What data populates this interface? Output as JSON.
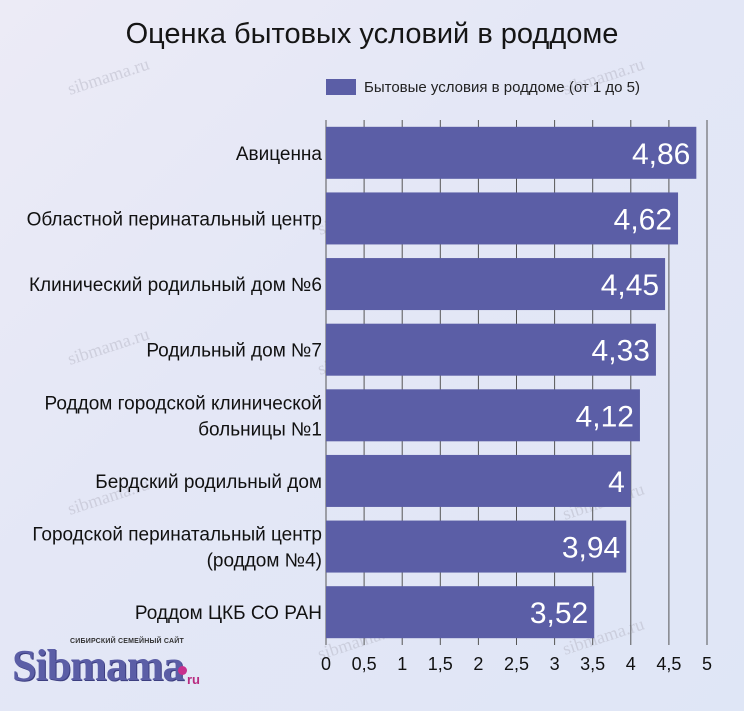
{
  "chart_data": {
    "type": "bar",
    "orientation": "horizontal",
    "title": "Оценка бытовых условий в роддоме",
    "legend": "top",
    "categories": [
      "Авиценна",
      "Областной перинатальный центр",
      "Клинический родильный дом №6",
      "Родильный дом №7",
      "Роддом городской клинической больницы №1",
      "Бердский родильный дом",
      "Городской перинатальный центр (роддом №4)",
      "Роддом ЦКБ СО РАН"
    ],
    "category_lines": [
      [
        "Авиценна"
      ],
      [
        "Областной перинатальный центр"
      ],
      [
        "Клинический родильный дом №6"
      ],
      [
        "Родильный дом №7"
      ],
      [
        "Роддом городской клинической",
        "больницы №1"
      ],
      [
        "Бердский родильный дом"
      ],
      [
        "Городской перинатальный центр",
        "(роддом №4)"
      ],
      [
        "Роддом ЦКБ СО РАН"
      ]
    ],
    "series": [
      {
        "name": "Бытовые условия в роддоме (от 1 до 5)",
        "values": [
          4.86,
          4.62,
          4.45,
          4.33,
          4.12,
          4,
          3.94,
          3.52
        ],
        "labels": [
          "4,86",
          "4,62",
          "4,45",
          "4,33",
          "4,12",
          "4",
          "3,94",
          "3,52"
        ]
      }
    ],
    "xlim": [
      0,
      5
    ],
    "xticks": [
      0,
      0.5,
      1,
      1.5,
      2,
      2.5,
      3,
      3.5,
      4,
      4.5,
      5
    ],
    "xtick_labels": [
      "0",
      "0,5",
      "1",
      "1,5",
      "2",
      "2,5",
      "3",
      "3,5",
      "4",
      "4,5",
      "5"
    ],
    "grid": true,
    "colors": {
      "bar": "#5b5ea6",
      "grid": "#555555",
      "label": "#ffffff"
    }
  },
  "watermark": "sibmama.ru",
  "logo": {
    "tagline": "СИБИРСКИЙ СЕМЕЙНЫЙ САЙТ",
    "name": "Sibmama",
    "suffix": "ru"
  }
}
